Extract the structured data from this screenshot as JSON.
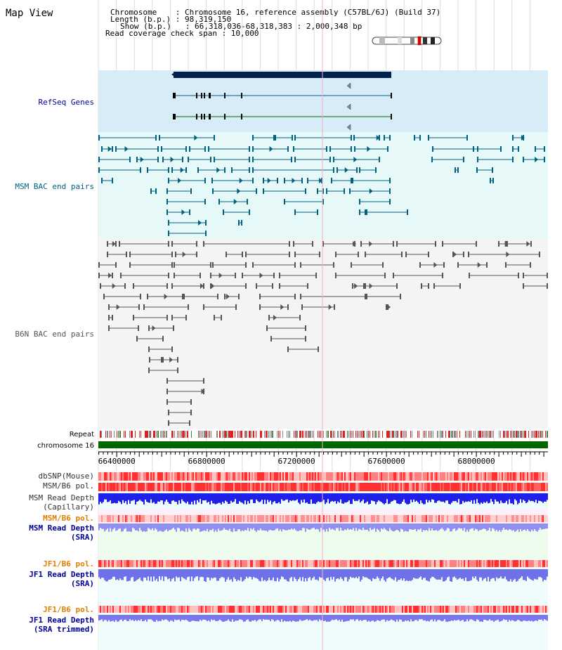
{
  "header": {
    "title": "Map View",
    "info": [
      "Chromosome    : Chromosome 16, reference assembly (C57BL/6J) (Build 37)",
      "Length (b.p.) : 98,319,150",
      "Show (b.p.)   : 66,318,036-68,318,383 : 2,000,348 bp",
      "Read coverage check span : 10,000"
    ]
  },
  "view": {
    "start": 66318036,
    "end": 68318383
  },
  "axis": {
    "ticks": [
      {
        "value": 66400000,
        "label": "66400000"
      },
      {
        "value": 66800000,
        "label": "66800000"
      },
      {
        "value": 67200000,
        "label": "67200000"
      },
      {
        "value": 67600000,
        "label": "67600000"
      },
      {
        "value": 68000000,
        "label": "68000000"
      }
    ]
  },
  "tracks": {
    "refseq": {
      "label": "RefSeq Genes",
      "color": "#000099"
    },
    "msm_bac": {
      "label": "MSM BAC end pairs",
      "color": "#006080"
    },
    "b6n_bac": {
      "label": "B6N BAC end pairs",
      "color": "#555555"
    },
    "repeat": {
      "label": "Repeat"
    },
    "chromosome": {
      "label": "chromosome 16"
    },
    "dbsnp": {
      "label": "dbSNP(Mouse)"
    },
    "msm_pol_1": {
      "label": "MSM/B6 pol."
    },
    "msm_depth_cap": {
      "label_line1": "MSM Read Depth",
      "label_line2": "(Capillary)"
    },
    "msm_pol_2": {
      "label": "MSM/B6 pol."
    },
    "msm_depth_sra": {
      "label_line1": "MSM Read Depth",
      "label_line2": "(SRA)"
    },
    "jf1_pol_1": {
      "label": "JF1/B6 pol."
    },
    "jf1_depth_sra": {
      "label_line1": "JF1 Read Depth",
      "label_line2": "(SRA)"
    },
    "jf1_pol_2": {
      "label": "JF1/B6 pol."
    },
    "jf1_depth_trim": {
      "label_line1": "JF1 Read Depth",
      "label_line2": "(SRA trimmed)"
    }
  },
  "colors": {
    "label_default": "#000000",
    "label_blue": "#000099",
    "label_orange": "#e08000",
    "label_msm": "#006080",
    "label_b6n": "#555555",
    "refseq_bg": "#d8ecf8",
    "msm_bg": "#e6f8f8",
    "b6n_bg": "#f4f4f4",
    "chromosome": "#006600",
    "depth_blue": "#2020e0",
    "depth_light": "#8080f0"
  },
  "refseq_genes": [
    {
      "start": 66490000,
      "end": 67490000,
      "type": "bar"
    },
    {
      "start": 67420000,
      "end": 67420000,
      "type": "marker"
    },
    {
      "start": 66490000,
      "end": 67490000,
      "type": "transcript"
    },
    {
      "start": 67420000,
      "end": 67420000,
      "type": "marker"
    },
    {
      "start": 66490000,
      "end": 67490000,
      "type": "transcript"
    },
    {
      "start": 67420000,
      "end": 67420000,
      "type": "marker"
    }
  ]
}
